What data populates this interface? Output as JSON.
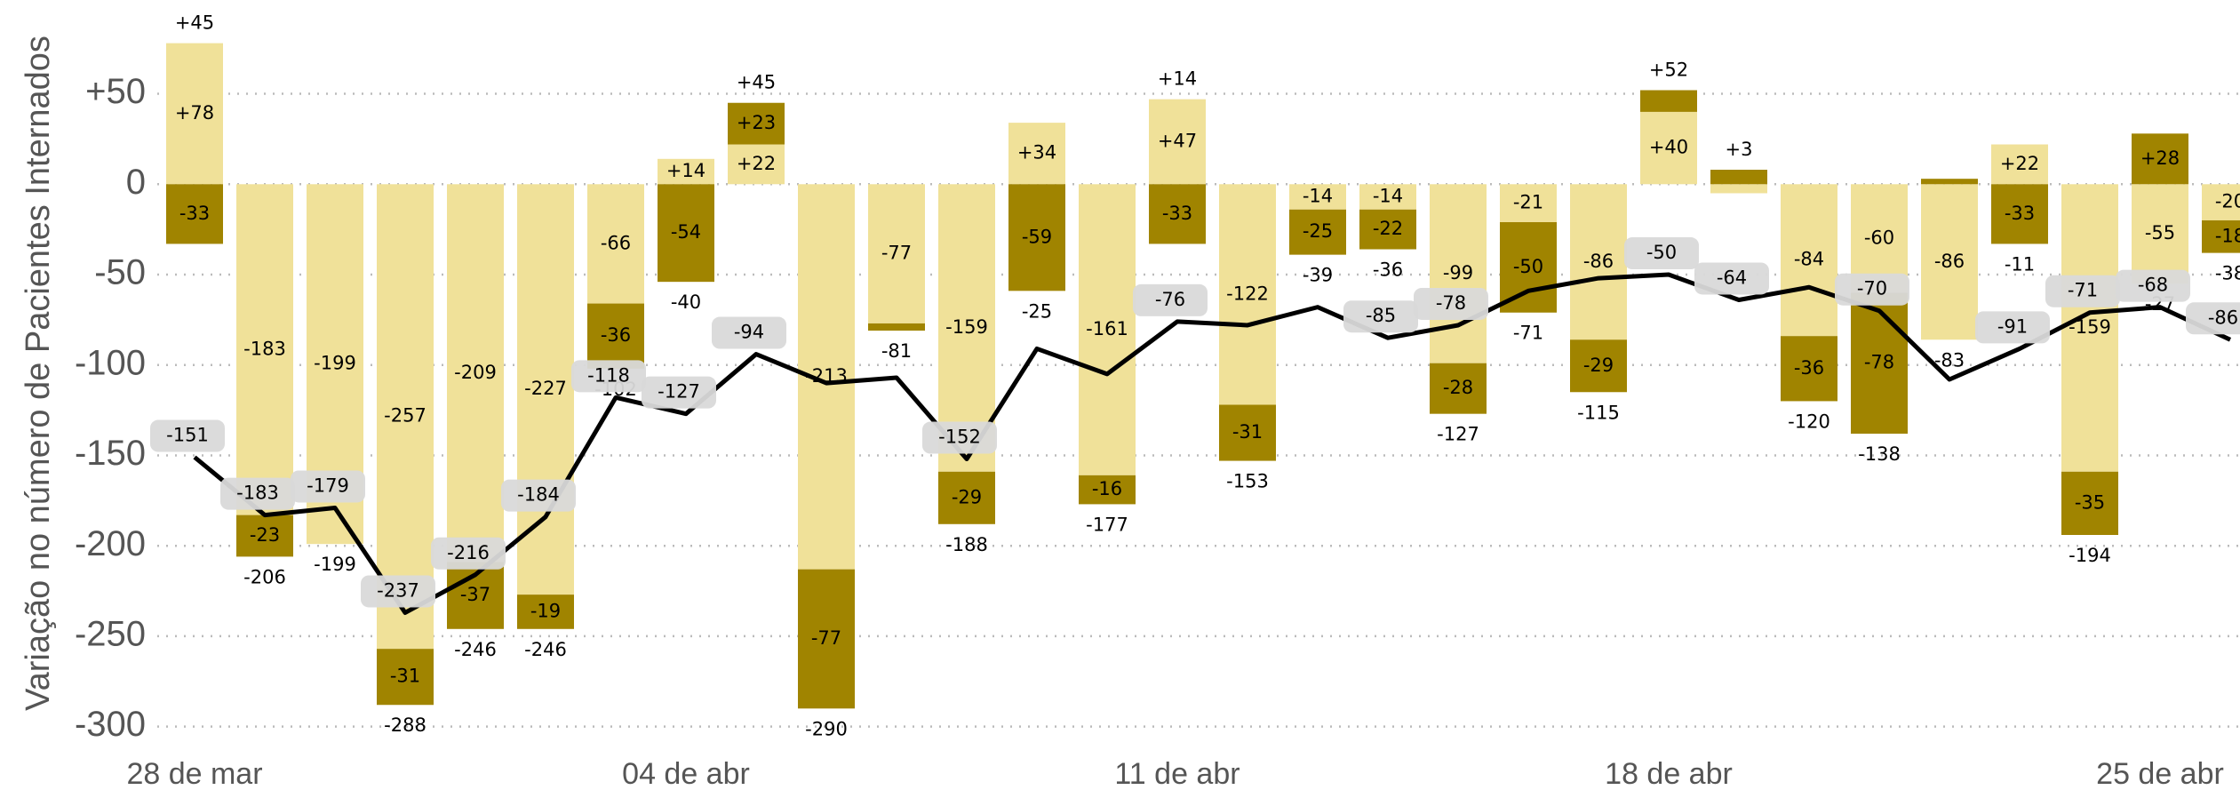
{
  "chart_data": {
    "type": "stacked-bar-line",
    "y_axis_label": "Variação no número de Pacientes Internados",
    "categories": [
      "28 de mar",
      null,
      null,
      null,
      null,
      null,
      null,
      "04 de abr",
      null,
      null,
      null,
      null,
      null,
      null,
      "11 de abr",
      null,
      null,
      null,
      null,
      null,
      null,
      "18 de abr",
      null,
      null,
      null,
      null,
      null,
      null,
      "25 de abr",
      null
    ],
    "ylim": [
      -310,
      95
    ],
    "yticks": [
      {
        "value": 50,
        "label": "+50"
      },
      0,
      -50,
      -100,
      -150,
      -200,
      -250,
      -300
    ],
    "grid": true,
    "series": [
      {
        "color": "#f0e199",
        "values": [
          78,
          -183,
          -199,
          -257,
          -209,
          -227,
          -66,
          14,
          22,
          -213,
          -77,
          -159,
          34,
          -161,
          47,
          -122,
          -14,
          -14,
          -99,
          -21,
          -86,
          40,
          -5,
          -84,
          -60,
          -86,
          22,
          -159,
          -55,
          -20
        ],
        "value_labels": [
          "+78",
          "-183",
          "-199",
          "-257",
          "-209",
          "-227",
          "-66",
          "+14",
          "+22",
          "-213",
          "-77",
          "-159",
          "+34",
          "-161",
          "+47",
          "-122",
          "-14",
          "-14",
          "-99",
          "-21",
          "-86",
          "+40",
          null,
          "-84",
          "-60",
          "-86",
          "+22",
          "-159",
          "-55",
          "-20"
        ]
      },
      {
        "color": "#a08400",
        "values": [
          -33,
          -23,
          null,
          -31,
          -37,
          -19,
          -36,
          -54,
          23,
          -77,
          -4,
          -29,
          -59,
          -16,
          -33,
          -31,
          -25,
          -22,
          -28,
          -50,
          -29,
          12,
          8,
          -36,
          -78,
          3,
          -33,
          -35,
          28,
          -18
        ],
        "value_labels": [
          "-33",
          "-23",
          null,
          "-31",
          "-37",
          "-19",
          "-36",
          "-54",
          "+23",
          "-77",
          null,
          "-29",
          "-59",
          "-16",
          "-33",
          "-31",
          "-25",
          "-22",
          "-28",
          "-50",
          "-29",
          null,
          null,
          "-36",
          "-78",
          null,
          "-33",
          "-35",
          "+28",
          "-18"
        ]
      }
    ],
    "totals": {
      "values": [
        45,
        -206,
        -199,
        -288,
        -246,
        -246,
        -102,
        -40,
        45,
        -290,
        -81,
        -188,
        -25,
        -177,
        14,
        -153,
        -39,
        -36,
        -127,
        -71,
        -115,
        52,
        3,
        -120,
        -138,
        -83,
        -11,
        -194,
        -27,
        -38
      ],
      "value_labels": [
        "+45",
        "-206",
        "-199",
        "-288",
        "-246",
        "-246",
        "-102",
        "-40",
        "+45",
        "-290",
        "-81",
        "-188",
        "-25",
        "-177",
        "+14",
        "-153",
        "-39",
        "-36",
        "-127",
        "-71",
        "-115",
        "+52",
        "+3",
        "-120",
        "-138",
        "-83",
        "-11",
        "-194",
        "-27",
        "-38"
      ]
    },
    "line": {
      "color": "#000000",
      "values": [
        -151,
        -183,
        -179,
        -237,
        -216,
        -184,
        -118,
        -127,
        -94,
        -110,
        -107,
        -152,
        -91,
        -105,
        -76,
        -78,
        -68,
        -85,
        -78,
        -59,
        -52,
        -50,
        -64,
        -57,
        -70,
        -108,
        -91,
        -71,
        -68,
        -86
      ],
      "value_labels": [
        "-151",
        "-183",
        "-179",
        "-237",
        "-216",
        "-184",
        "-118",
        "-127",
        "-94",
        null,
        null,
        "-152",
        null,
        null,
        "-76",
        null,
        null,
        "-85",
        "-78",
        null,
        null,
        "-50",
        "-64",
        null,
        "-70",
        null,
        "-91",
        "-71",
        "-68",
        "-86"
      ]
    }
  }
}
